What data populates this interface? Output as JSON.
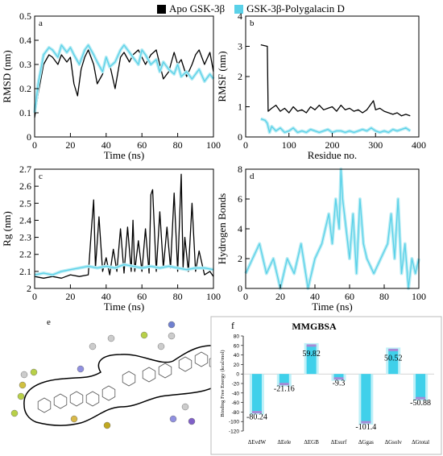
{
  "legend": {
    "items": [
      {
        "label": "Apo GSK-3β",
        "color": "#000000"
      },
      {
        "label": "GSK-3β-Polygalacin D",
        "color": "#5ad1e8"
      }
    ]
  },
  "chart_data": [
    {
      "panel": "a",
      "type": "line",
      "xlabel": "Time (ns)",
      "ylabel": "RMSD (nm)",
      "xlim": [
        0,
        100
      ],
      "ylim": [
        0,
        0.5
      ],
      "xticks": [
        0,
        20,
        40,
        60,
        80,
        100
      ],
      "yticks": [
        0,
        0.1,
        0.2,
        0.3,
        0.4,
        0.5
      ],
      "series": [
        {
          "name": "Apo GSK-3β",
          "x": [
            0,
            2,
            5,
            8,
            10,
            13,
            15,
            18,
            20,
            22,
            24,
            26,
            28,
            30,
            33,
            35,
            38,
            40,
            42,
            45,
            48,
            50,
            53,
            55,
            58,
            60,
            62,
            65,
            68,
            70,
            72,
            75,
            78,
            80,
            82,
            85,
            88,
            90,
            92,
            95,
            98,
            100
          ],
          "y": [
            0.08,
            0.18,
            0.3,
            0.34,
            0.33,
            0.3,
            0.34,
            0.31,
            0.33,
            0.22,
            0.17,
            0.28,
            0.33,
            0.36,
            0.3,
            0.22,
            0.26,
            0.32,
            0.3,
            0.2,
            0.33,
            0.35,
            0.31,
            0.34,
            0.36,
            0.33,
            0.3,
            0.34,
            0.36,
            0.3,
            0.24,
            0.27,
            0.35,
            0.3,
            0.32,
            0.25,
            0.3,
            0.34,
            0.36,
            0.3,
            0.35,
            0.27
          ]
        },
        {
          "name": "GSK-3β-Polygalacin D",
          "x": [
            0,
            2,
            5,
            8,
            10,
            13,
            15,
            18,
            20,
            22,
            25,
            28,
            30,
            33,
            35,
            38,
            40,
            42,
            45,
            48,
            50,
            53,
            55,
            58,
            60,
            62,
            65,
            68,
            70,
            72,
            75,
            78,
            80,
            82,
            85,
            88,
            90,
            92,
            95,
            98,
            100
          ],
          "y": [
            0.1,
            0.22,
            0.34,
            0.37,
            0.36,
            0.33,
            0.38,
            0.35,
            0.37,
            0.34,
            0.3,
            0.36,
            0.38,
            0.34,
            0.31,
            0.27,
            0.33,
            0.29,
            0.31,
            0.36,
            0.38,
            0.35,
            0.33,
            0.3,
            0.36,
            0.34,
            0.3,
            0.32,
            0.27,
            0.31,
            0.28,
            0.26,
            0.3,
            0.25,
            0.27,
            0.24,
            0.26,
            0.28,
            0.23,
            0.26,
            0.24
          ]
        }
      ]
    },
    {
      "panel": "b",
      "type": "line",
      "xlabel": "Residue no.",
      "ylabel": "RMSF (nm)",
      "xlim": [
        0,
        400
      ],
      "ylim": [
        0,
        4
      ],
      "xticks": [
        0,
        100,
        200,
        300,
        400
      ],
      "yticks": [
        0,
        1,
        2,
        3,
        4
      ],
      "series": [
        {
          "name": "Apo GSK-3β",
          "x": [
            35,
            50,
            52,
            60,
            70,
            80,
            90,
            100,
            110,
            120,
            130,
            140,
            150,
            160,
            170,
            180,
            190,
            200,
            210,
            220,
            230,
            240,
            250,
            260,
            270,
            280,
            290,
            295,
            300,
            310,
            320,
            330,
            340,
            350,
            360,
            370,
            380
          ],
          "y": [
            3.05,
            3.0,
            0.85,
            0.95,
            1.05,
            0.85,
            0.95,
            0.8,
            1.0,
            0.85,
            0.9,
            0.8,
            1.0,
            0.9,
            1.05,
            0.9,
            0.95,
            1.0,
            0.85,
            1.05,
            0.9,
            0.95,
            0.85,
            0.9,
            0.8,
            0.9,
            1.1,
            1.2,
            0.9,
            0.95,
            0.85,
            0.8,
            0.75,
            0.8,
            0.7,
            0.75,
            0.7
          ]
        },
        {
          "name": "GSK-3β-Polygalacin D",
          "x": [
            35,
            45,
            50,
            55,
            60,
            70,
            80,
            90,
            100,
            110,
            120,
            130,
            140,
            150,
            160,
            170,
            180,
            190,
            200,
            210,
            220,
            230,
            240,
            250,
            260,
            270,
            280,
            290,
            300,
            310,
            320,
            330,
            340,
            350,
            360,
            370,
            380
          ],
          "y": [
            0.6,
            0.55,
            0.45,
            0.15,
            0.35,
            0.2,
            0.3,
            0.15,
            0.2,
            0.3,
            0.15,
            0.2,
            0.15,
            0.25,
            0.2,
            0.15,
            0.2,
            0.25,
            0.15,
            0.2,
            0.2,
            0.15,
            0.2,
            0.15,
            0.2,
            0.25,
            0.2,
            0.3,
            0.2,
            0.15,
            0.2,
            0.15,
            0.25,
            0.2,
            0.25,
            0.3,
            0.2
          ]
        }
      ]
    },
    {
      "panel": "c",
      "type": "line",
      "xlabel": "Time (ns)",
      "ylabel": "Rg (nm)",
      "xlim": [
        0,
        100
      ],
      "ylim": [
        2,
        2.7
      ],
      "xticks": [
        0,
        20,
        40,
        60,
        80,
        100
      ],
      "yticks": [
        2,
        2.1,
        2.2,
        2.3,
        2.4,
        2.5,
        2.6,
        2.7
      ],
      "series": [
        {
          "name": "Apo GSK-3β",
          "x": [
            0,
            5,
            10,
            15,
            20,
            25,
            30,
            32,
            33,
            34,
            36,
            38,
            40,
            42,
            44,
            46,
            48,
            50,
            52,
            54,
            55,
            56,
            58,
            60,
            62,
            64,
            65,
            66,
            68,
            70,
            72,
            74,
            76,
            78,
            80,
            82,
            83,
            84,
            86,
            88,
            90,
            92,
            95,
            98,
            100
          ],
          "y": [
            2.07,
            2.06,
            2.07,
            2.06,
            2.08,
            2.07,
            2.08,
            2.38,
            2.52,
            2.12,
            2.42,
            2.1,
            2.18,
            2.08,
            2.23,
            2.1,
            2.35,
            2.09,
            2.36,
            2.1,
            2.4,
            2.1,
            2.28,
            2.1,
            2.35,
            2.09,
            2.55,
            2.58,
            2.1,
            2.45,
            2.12,
            2.36,
            2.12,
            2.56,
            2.1,
            2.67,
            2.12,
            2.3,
            2.1,
            2.5,
            2.1,
            2.22,
            2.08,
            2.1,
            2.07
          ]
        },
        {
          "name": "GSK-3β-Polygalacin D",
          "x": [
            0,
            5,
            10,
            15,
            20,
            25,
            30,
            35,
            40,
            45,
            50,
            55,
            60,
            65,
            70,
            75,
            80,
            85,
            90,
            95,
            100
          ],
          "y": [
            2.08,
            2.09,
            2.08,
            2.1,
            2.11,
            2.12,
            2.13,
            2.12,
            2.13,
            2.12,
            2.14,
            2.13,
            2.12,
            2.13,
            2.12,
            2.13,
            2.12,
            2.11,
            2.12,
            2.12,
            2.11
          ]
        }
      ]
    },
    {
      "panel": "d",
      "type": "line",
      "xlabel": "Time (ns)",
      "ylabel": "Hydrogen Bonds",
      "xlim": [
        0,
        100
      ],
      "ylim": [
        0,
        8
      ],
      "xticks": [
        0,
        20,
        40,
        60,
        80,
        100
      ],
      "yticks": [
        0,
        2,
        4,
        6,
        8
      ],
      "series": [
        {
          "name": "GSK-3β-Polygalacin D",
          "x": [
            0,
            4,
            8,
            12,
            16,
            20,
            24,
            28,
            32,
            36,
            40,
            44,
            48,
            50,
            52,
            54,
            55,
            56,
            58,
            60,
            62,
            64,
            66,
            68,
            70,
            74,
            78,
            82,
            84,
            86,
            88,
            90,
            92,
            94,
            96,
            98,
            100
          ],
          "y": [
            1,
            2,
            3,
            1,
            2,
            0,
            2,
            1,
            3,
            0,
            2,
            3,
            5,
            3,
            6,
            4,
            8,
            6,
            4,
            2,
            5,
            1,
            6,
            3,
            2,
            1,
            2,
            3,
            5,
            2,
            6,
            1,
            3,
            0,
            2,
            1,
            2
          ]
        }
      ]
    },
    {
      "panel": "f",
      "type": "bar",
      "title": "MMGBSA",
      "ylabel": "Binding Free Energy (kcal/mol)",
      "ylim": [
        -120,
        80
      ],
      "yticks": [
        80,
        60,
        40,
        20,
        0,
        -20,
        -40,
        -60,
        -80,
        -100,
        -120
      ],
      "categories": [
        "ΔEvdW",
        "ΔEele",
        "ΔEGB",
        "ΔEsurf",
        "ΔGgas",
        "ΔGsolv",
        "ΔGtotal"
      ],
      "values": [
        -80.24,
        -21.16,
        59.82,
        -9.3,
        -101.4,
        50.52,
        -50.88
      ],
      "value_labels": [
        "-80.24",
        "-21.16",
        "59.82",
        "-9.3",
        "-101.4",
        "50.52",
        "-50.88"
      ]
    }
  ],
  "panel_e": {
    "label": "e"
  },
  "colors": {
    "apo": "#000000",
    "complex": "#5ad1e8",
    "complex_light": "#b8ecf4",
    "bar": "#3fd0ea",
    "bar_error": "#a58bd6"
  }
}
